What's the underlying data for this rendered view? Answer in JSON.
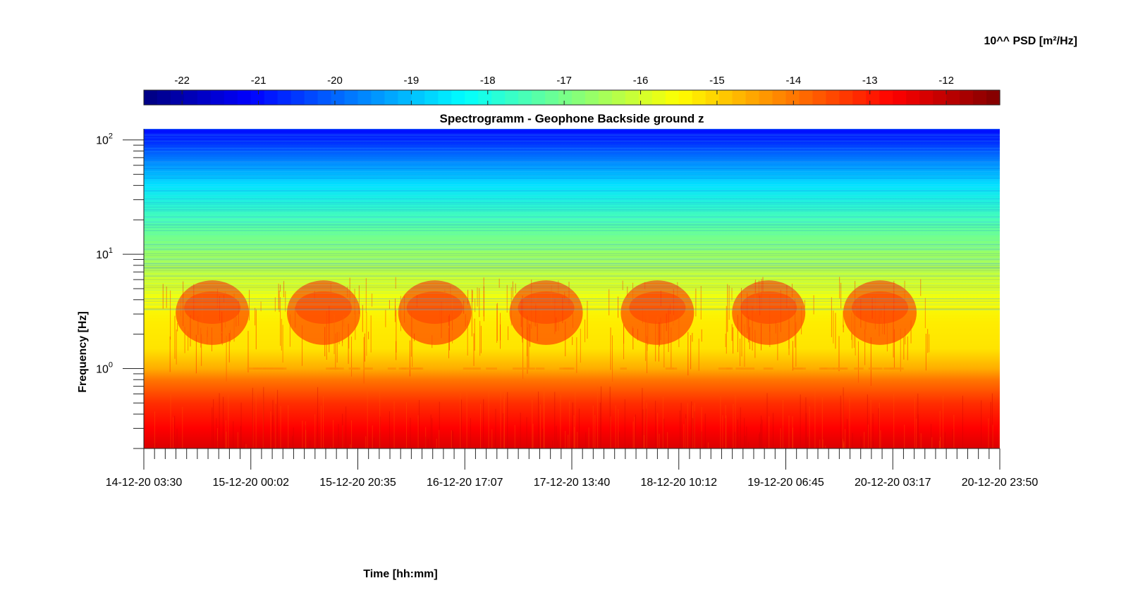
{
  "chart_data": {
    "type": "heatmap",
    "title": "Spectrogramm - Geophone Backside ground z",
    "xlabel": "Time [hh:mm]",
    "ylabel": "Frequency [Hz]",
    "colorbar": {
      "label": "10^^ PSD [m²/Hz]",
      "ticks": [
        "-22",
        "-21",
        "-20",
        "-19",
        "-18",
        "-17",
        "-16",
        "-15",
        "-14",
        "-13",
        "-12"
      ],
      "tick_values": [
        -22,
        -21,
        -20,
        -19,
        -18,
        -17,
        -16,
        -15,
        -14,
        -13,
        -12
      ],
      "range": [
        -22.5,
        -11.3
      ],
      "colormap": "jet",
      "placement": "top"
    },
    "x_tick_labels": [
      "14-12-20 03:30",
      "15-12-20 00:02",
      "15-12-20 20:35",
      "16-12-20 17:07",
      "17-12-20 13:40",
      "18-12-20 10:12",
      "19-12-20 06:45",
      "20-12-20 03:17",
      "20-12-20 23:50"
    ],
    "y_axis": {
      "scale": "log",
      "range": [
        0.2,
        125
      ],
      "tick_values": [
        1,
        10,
        100
      ],
      "tick_bases": [
        "10",
        "10",
        "10"
      ],
      "tick_exponents": [
        "0",
        "1",
        "2"
      ]
    },
    "frequency_profile": {
      "description_free_values": true,
      "freq_hz": [
        0.2,
        0.3,
        0.5,
        0.8,
        1.0,
        1.5,
        2.5,
        4.0,
        6.0,
        10,
        20,
        40,
        70,
        100,
        125
      ],
      "log10_psd": [
        -12.3,
        -12.7,
        -13.2,
        -14.0,
        -14.6,
        -15.2,
        -15.3,
        -15.6,
        -16.0,
        -16.6,
        -17.5,
        -18.6,
        -19.8,
        -20.7,
        -21.0
      ]
    },
    "daily_bursts": {
      "band_hz": [
        1.5,
        5.5
      ],
      "peak_log10_psd": -13.5,
      "center_fraction_of_time_axis": [
        0.08,
        0.21,
        0.34,
        0.47,
        0.6,
        0.73,
        0.86
      ]
    },
    "grid": false
  }
}
